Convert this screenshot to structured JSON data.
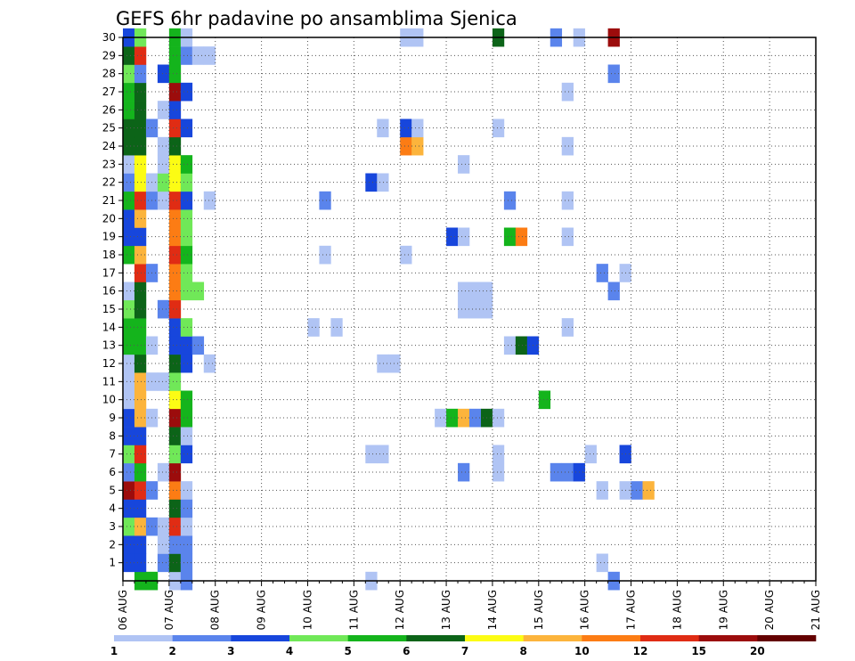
{
  "chart_data": {
    "type": "heatmap",
    "title": "GEFS 6hr padavine po ansamblima Sjenica",
    "xlabel": "",
    "ylabel": "",
    "x_tick_labels": [
      "06 AUG",
      "07 AUG",
      "08 AUG",
      "09 AUG",
      "10 AUG",
      "11 AUG",
      "12 AUG",
      "13 AUG",
      "14 AUG",
      "15 AUG",
      "16 AUG",
      "17 AUG",
      "18 AUG",
      "19 AUG",
      "20 AUG",
      "21 AUG"
    ],
    "y_tick_labels": [
      "1",
      "2",
      "3",
      "4",
      "5",
      "6",
      "7",
      "8",
      "9",
      "10",
      "11",
      "12",
      "13",
      "14",
      "15",
      "16",
      "17",
      "18",
      "19",
      "20",
      "21",
      "22",
      "23",
      "24",
      "25",
      "26",
      "27",
      "28",
      "29",
      "30"
    ],
    "xlim_days": [
      0,
      15
    ],
    "steps_per_day": 4,
    "ylim_members": [
      0,
      30
    ],
    "grid": true,
    "legend": "bottom",
    "colorbar": {
      "labels": [
        "1",
        "2",
        "3",
        "4",
        "5",
        "6",
        "7",
        "8",
        "10",
        "12",
        "15",
        "20"
      ],
      "colors": [
        "#b0c4f4",
        "#5a84ec",
        "#1746dc",
        "#70e858",
        "#14b41c",
        "#0c6418",
        "#fcfc14",
        "#fcb43c",
        "#fc7c14",
        "#e02c14",
        "#9c0c0c",
        "#640000"
      ]
    },
    "cells": [
      [
        0,
        1,
        3
      ],
      [
        0,
        2,
        3
      ],
      [
        0,
        3,
        4
      ],
      [
        0,
        4,
        3
      ],
      [
        0,
        5,
        11
      ],
      [
        0,
        6,
        2
      ],
      [
        0,
        7,
        4
      ],
      [
        0,
        8,
        3
      ],
      [
        0,
        9,
        3
      ],
      [
        0,
        10,
        1
      ],
      [
        0,
        11,
        1
      ],
      [
        0,
        12,
        1
      ],
      [
        0,
        13,
        5
      ],
      [
        0,
        14,
        5
      ],
      [
        0,
        15,
        4
      ],
      [
        0,
        16,
        1
      ],
      [
        0,
        18,
        5
      ],
      [
        0,
        19,
        3
      ],
      [
        0,
        20,
        3
      ],
      [
        0,
        21,
        5
      ],
      [
        0,
        22,
        2
      ],
      [
        0,
        23,
        1
      ],
      [
        0,
        24,
        6
      ],
      [
        0,
        25,
        6
      ],
      [
        0,
        26,
        5
      ],
      [
        0,
        27,
        5
      ],
      [
        0,
        28,
        4
      ],
      [
        0,
        29,
        6
      ],
      [
        0,
        30,
        3
      ],
      [
        1,
        0,
        5
      ],
      [
        1,
        1,
        3
      ],
      [
        1,
        2,
        3
      ],
      [
        1,
        3,
        8
      ],
      [
        1,
        4,
        3
      ],
      [
        1,
        5,
        10
      ],
      [
        1,
        6,
        5
      ],
      [
        1,
        7,
        10
      ],
      [
        1,
        8,
        3
      ],
      [
        1,
        9,
        8
      ],
      [
        1,
        10,
        8
      ],
      [
        1,
        11,
        8
      ],
      [
        1,
        12,
        6
      ],
      [
        1,
        13,
        5
      ],
      [
        1,
        14,
        5
      ],
      [
        1,
        15,
        6
      ],
      [
        1,
        16,
        6
      ],
      [
        1,
        17,
        10
      ],
      [
        1,
        18,
        8
      ],
      [
        1,
        19,
        3
      ],
      [
        1,
        20,
        8
      ],
      [
        1,
        21,
        10
      ],
      [
        1,
        22,
        7
      ],
      [
        1,
        23,
        7
      ],
      [
        1,
        24,
        6
      ],
      [
        1,
        25,
        6
      ],
      [
        1,
        26,
        6
      ],
      [
        1,
        27,
        6
      ],
      [
        1,
        28,
        2
      ],
      [
        1,
        29,
        10
      ],
      [
        1,
        30,
        4
      ],
      [
        2,
        0,
        5
      ],
      [
        2,
        3,
        2
      ],
      [
        2,
        5,
        2
      ],
      [
        2,
        9,
        1
      ],
      [
        2,
        11,
        1
      ],
      [
        2,
        13,
        1
      ],
      [
        2,
        17,
        2
      ],
      [
        2,
        21,
        2
      ],
      [
        2,
        22,
        1
      ],
      [
        2,
        25,
        2
      ],
      [
        3,
        1,
        2
      ],
      [
        3,
        2,
        1
      ],
      [
        3,
        3,
        1
      ],
      [
        3,
        6,
        1
      ],
      [
        3,
        11,
        1
      ],
      [
        3,
        15,
        2
      ],
      [
        3,
        21,
        1
      ],
      [
        3,
        22,
        4
      ],
      [
        3,
        23,
        1
      ],
      [
        3,
        24,
        1
      ],
      [
        3,
        26,
        1
      ],
      [
        3,
        28,
        3
      ],
      [
        4,
        0,
        1
      ],
      [
        4,
        1,
        6
      ],
      [
        4,
        2,
        2
      ],
      [
        4,
        3,
        10
      ],
      [
        4,
        4,
        6
      ],
      [
        4,
        5,
        9
      ],
      [
        4,
        6,
        11
      ],
      [
        4,
        7,
        4
      ],
      [
        4,
        8,
        6
      ],
      [
        4,
        9,
        11
      ],
      [
        4,
        10,
        7
      ],
      [
        4,
        11,
        4
      ],
      [
        4,
        12,
        6
      ],
      [
        4,
        13,
        3
      ],
      [
        4,
        14,
        3
      ],
      [
        4,
        15,
        10
      ],
      [
        4,
        16,
        9
      ],
      [
        4,
        17,
        9
      ],
      [
        4,
        18,
        10
      ],
      [
        4,
        19,
        9
      ],
      [
        4,
        20,
        9
      ],
      [
        4,
        21,
        10
      ],
      [
        4,
        22,
        7
      ],
      [
        4,
        23,
        7
      ],
      [
        4,
        24,
        6
      ],
      [
        4,
        25,
        10
      ],
      [
        4,
        26,
        3
      ],
      [
        4,
        27,
        11
      ],
      [
        4,
        28,
        5
      ],
      [
        4,
        29,
        5
      ],
      [
        4,
        30,
        5
      ],
      [
        5,
        0,
        2
      ],
      [
        5,
        1,
        2
      ],
      [
        5,
        2,
        2
      ],
      [
        5,
        3,
        1
      ],
      [
        5,
        4,
        2
      ],
      [
        5,
        5,
        1
      ],
      [
        5,
        7,
        3
      ],
      [
        5,
        8,
        1
      ],
      [
        5,
        9,
        5
      ],
      [
        5,
        10,
        5
      ],
      [
        5,
        12,
        3
      ],
      [
        5,
        13,
        3
      ],
      [
        5,
        14,
        4
      ],
      [
        5,
        16,
        4
      ],
      [
        5,
        17,
        4
      ],
      [
        5,
        18,
        5
      ],
      [
        5,
        19,
        4
      ],
      [
        5,
        20,
        4
      ],
      [
        5,
        21,
        3
      ],
      [
        5,
        22,
        4
      ],
      [
        5,
        23,
        5
      ],
      [
        5,
        25,
        3
      ],
      [
        5,
        27,
        3
      ],
      [
        5,
        29,
        2
      ],
      [
        5,
        30,
        1
      ],
      [
        6,
        13,
        2
      ],
      [
        6,
        16,
        4
      ],
      [
        6,
        29,
        1
      ],
      [
        7,
        12,
        1
      ],
      [
        7,
        21,
        1
      ],
      [
        7,
        29,
        1
      ],
      [
        16,
        14,
        1
      ],
      [
        17,
        18,
        1
      ],
      [
        17,
        21,
        2
      ],
      [
        18,
        14,
        1
      ],
      [
        21,
        0,
        1
      ],
      [
        21,
        7,
        1
      ],
      [
        21,
        22,
        3
      ],
      [
        22,
        7,
        1
      ],
      [
        22,
        12,
        1
      ],
      [
        22,
        22,
        1
      ],
      [
        22,
        25,
        1
      ],
      [
        23,
        12,
        1
      ],
      [
        24,
        18,
        1
      ],
      [
        24,
        24,
        9
      ],
      [
        24,
        25,
        3
      ],
      [
        24,
        30,
        1
      ],
      [
        25,
        24,
        8
      ],
      [
        25,
        25,
        1
      ],
      [
        25,
        30,
        1
      ],
      [
        27,
        9,
        1
      ],
      [
        28,
        9,
        5
      ],
      [
        28,
        19,
        3
      ],
      [
        29,
        6,
        2
      ],
      [
        29,
        9,
        8
      ],
      [
        29,
        15,
        1
      ],
      [
        29,
        16,
        1
      ],
      [
        29,
        19,
        1
      ],
      [
        29,
        23,
        1
      ],
      [
        30,
        9,
        2
      ],
      [
        30,
        15,
        1
      ],
      [
        30,
        16,
        1
      ],
      [
        31,
        9,
        6
      ],
      [
        31,
        15,
        1
      ],
      [
        31,
        16,
        1
      ],
      [
        32,
        6,
        1
      ],
      [
        32,
        7,
        1
      ],
      [
        32,
        9,
        1
      ],
      [
        32,
        25,
        1
      ],
      [
        32,
        30,
        6
      ],
      [
        33,
        13,
        1
      ],
      [
        33,
        19,
        5
      ],
      [
        33,
        21,
        2
      ],
      [
        34,
        13,
        6
      ],
      [
        34,
        19,
        9
      ],
      [
        35,
        13,
        3
      ],
      [
        36,
        10,
        5
      ],
      [
        37,
        6,
        2
      ],
      [
        37,
        30,
        2
      ],
      [
        38,
        6,
        2
      ],
      [
        38,
        14,
        1
      ],
      [
        38,
        19,
        1
      ],
      [
        38,
        21,
        1
      ],
      [
        38,
        24,
        1
      ],
      [
        38,
        27,
        1
      ],
      [
        39,
        6,
        3
      ],
      [
        39,
        30,
        1
      ],
      [
        40,
        7,
        1
      ],
      [
        41,
        1,
        1
      ],
      [
        41,
        5,
        1
      ],
      [
        41,
        17,
        2
      ],
      [
        42,
        0,
        2
      ],
      [
        42,
        16,
        2
      ],
      [
        42,
        28,
        2
      ],
      [
        42,
        30,
        11
      ],
      [
        43,
        5,
        1
      ],
      [
        43,
        7,
        3
      ],
      [
        43,
        17,
        1
      ],
      [
        44,
        5,
        2
      ],
      [
        45,
        5,
        8
      ]
    ]
  }
}
